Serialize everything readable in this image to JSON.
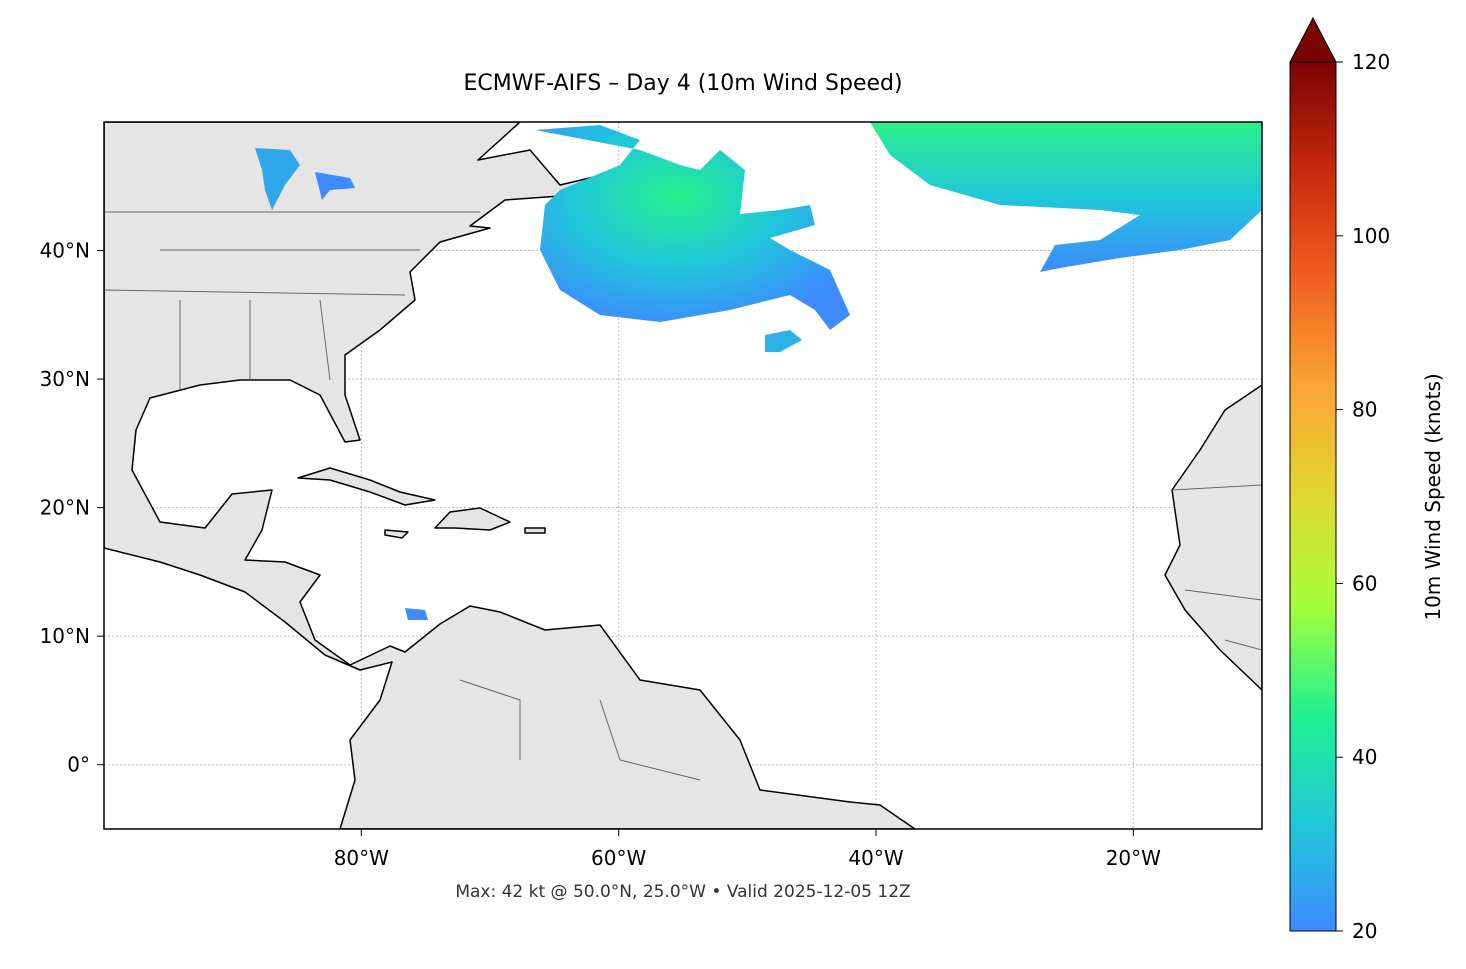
{
  "map": {
    "title": "ECMWF-AIFS – Day 4 (10m Wind Speed)",
    "footer": "Max: 42 kt @ 50.0°N, 25.0°W • Valid 2025-12-05 12Z",
    "xlim": [
      -100,
      -10
    ],
    "ylim": [
      -5,
      50
    ],
    "xticks": [
      {
        "value": -80,
        "label": "80°W"
      },
      {
        "value": -60,
        "label": "60°W"
      },
      {
        "value": -40,
        "label": "40°W"
      },
      {
        "value": -20,
        "label": "20°W"
      }
    ],
    "yticks": [
      {
        "value": 0,
        "label": "0°"
      },
      {
        "value": 10,
        "label": "10°N"
      },
      {
        "value": 20,
        "label": "20°N"
      },
      {
        "value": 30,
        "label": "30°N"
      },
      {
        "value": 40,
        "label": "40°N"
      }
    ],
    "grid": true,
    "colorbar": {
      "label": "10m Wind Speed (knots)",
      "lim": [
        20,
        120
      ],
      "ticks": [
        20,
        40,
        60,
        80,
        100,
        120
      ],
      "colors": [
        "#3d8bff",
        "#1fc8d8",
        "#22f08f",
        "#a4ff3a",
        "#e0d830",
        "#fca535",
        "#f06020",
        "#c82a0c",
        "#7a0403"
      ]
    }
  }
}
